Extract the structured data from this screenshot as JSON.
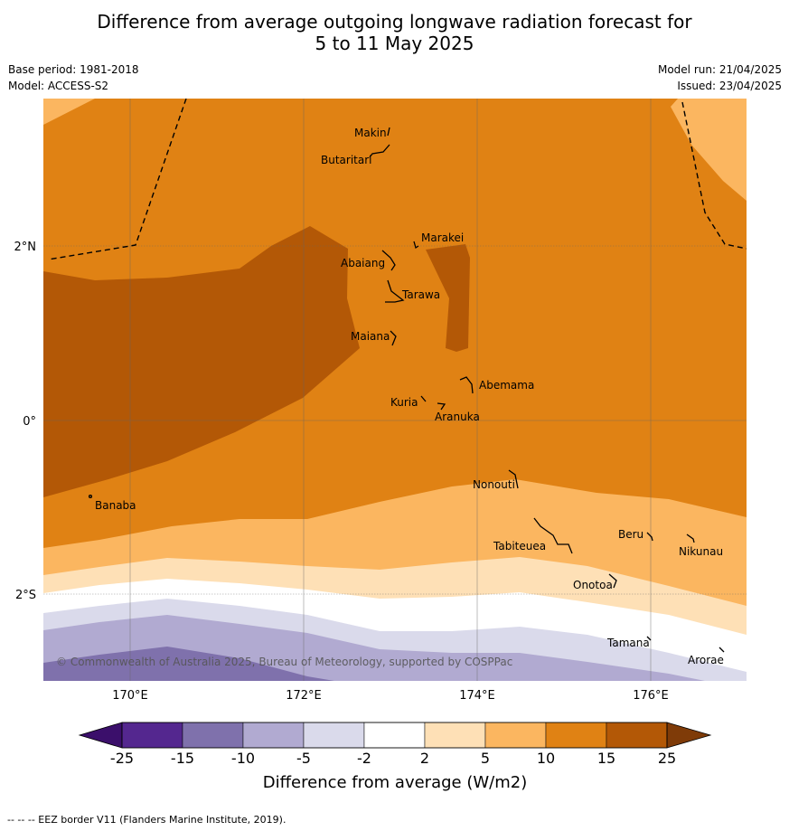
{
  "title_line1": "Difference from average outgoing longwave radiation forecast for",
  "title_line2": "5 to 11 May 2025",
  "base_period": "Base period: 1981-2018",
  "model": "Model: ACCESS-S2",
  "model_run": "Model run: 21/04/2025",
  "issued": "Issued: 23/04/2025",
  "axes": {
    "lon_ticks": [
      "170°E",
      "172°E",
      "174°E",
      "176°E"
    ],
    "lat_ticks": [
      "2°N",
      "0°",
      "2°S"
    ]
  },
  "places": [
    {
      "name": "Makin"
    },
    {
      "name": "Butaritari"
    },
    {
      "name": "Marakei"
    },
    {
      "name": "Abaiang"
    },
    {
      "name": "Tarawa"
    },
    {
      "name": "Maiana"
    },
    {
      "name": "Abemama"
    },
    {
      "name": "Kuria"
    },
    {
      "name": "Aranuka"
    },
    {
      "name": "Nonouti"
    },
    {
      "name": "Banaba"
    },
    {
      "name": "Tabiteuea"
    },
    {
      "name": "Beru"
    },
    {
      "name": "Nikunau"
    },
    {
      "name": "Onotoa"
    },
    {
      "name": "Tamana"
    },
    {
      "name": "Arorae"
    }
  ],
  "copyright": "© Commonwealth of Australia 2025, Bureau of Meteorology, supported by COSPPac",
  "colorbar": {
    "ticks": [
      "-25",
      "-15",
      "-10",
      "-5",
      "-2",
      "2",
      "5",
      "10",
      "15",
      "25"
    ],
    "colors": [
      "#54278f",
      "#7f71ac",
      "#b1aad1",
      "#dadaeb",
      "#ffffff",
      "#fee0b6",
      "#fbb660",
      "#e08214",
      "#b35806"
    ],
    "under_color": "#3b0f6b",
    "over_color": "#7f3b08",
    "label": "Difference from average (W/m2)"
  },
  "footer": "--  --  -- EEZ border V11 (Flanders Marine Institute, 2019)."
}
